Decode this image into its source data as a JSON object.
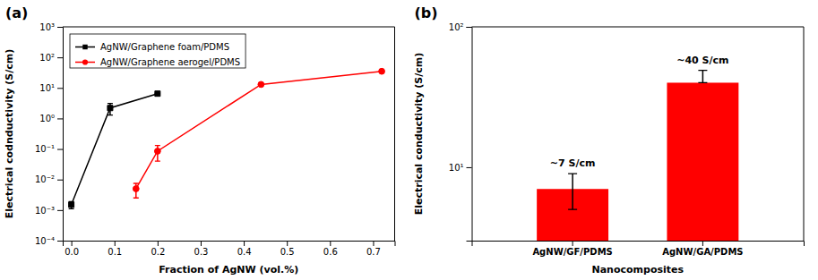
{
  "chart_data": [
    {
      "type": "line",
      "title": "(a)",
      "x_label": "Fraction of AgNW (vol.%)",
      "y_label": "Electrical codnductivity (S/cm)",
      "log": "y",
      "grid": false,
      "legend": "upper left",
      "xlim": [
        -0.02,
        0.75
      ],
      "xticks": [
        {
          "value": 0.0,
          "label": "0.0"
        },
        0.1,
        0.2,
        0.3,
        0.4,
        0.5,
        0.6,
        0.7
      ],
      "ylim": [
        0.0001,
        1000
      ],
      "yticks": [
        {
          "value": 0.0001,
          "label": "10⁻⁴"
        },
        {
          "value": 0.001,
          "label": "10⁻³"
        },
        {
          "value": 0.01,
          "label": "10⁻²"
        },
        {
          "value": 0.1,
          "label": "10⁻¹"
        },
        {
          "value": 1,
          "label": "10⁰"
        },
        {
          "value": 10,
          "label": "10¹"
        },
        {
          "value": 100,
          "label": "10²"
        },
        {
          "value": 1000,
          "label": "10³"
        }
      ],
      "series": [
        {
          "name": "AgNW/Graphene foam/PDMS",
          "color": "black",
          "marker": "square",
          "line_style": "solid",
          "x": [
            0.0,
            0.09,
            0.2
          ],
          "values": [
            0.0015,
            2.2,
            6.5
          ],
          "error_low": [
            0.0004,
            0.9,
            0.0
          ],
          "error_high": [
            0.0004,
            0.9,
            0.0
          ]
        },
        {
          "name": "AgNW/Graphene aerogel/PDMS",
          "color": "red",
          "marker": "circle",
          "line_style": "solid",
          "x": [
            0.15,
            0.2,
            0.44,
            0.72
          ],
          "values": [
            0.005,
            0.085,
            13.0,
            35.0
          ],
          "error_low": [
            0.0025,
            0.045,
            0.0,
            0.0
          ],
          "error_high": [
            0.0025,
            0.045,
            0.0,
            0.0
          ]
        }
      ]
    },
    {
      "type": "bar",
      "title": "(b)",
      "x_label": "Nanocomposites",
      "y_label": "Electrical conductivity (S/cm)",
      "log": "y",
      "grid": false,
      "color": "#FF0000",
      "categories": [
        "AgNW/GF/PDMS",
        "AgNW/GA/PDMS"
      ],
      "values": [
        7.0,
        40.0
      ],
      "error_low": [
        2.0,
        0.0
      ],
      "error_high": [
        2.0,
        9.0
      ],
      "annotations": [
        "~7 S/cm",
        "~40 S/cm"
      ],
      "ylim": [
        3.0,
        100.0
      ],
      "yticks": [
        {
          "value": 10,
          "label": "10¹"
        },
        {
          "value": 100,
          "label": "10²"
        }
      ]
    }
  ]
}
